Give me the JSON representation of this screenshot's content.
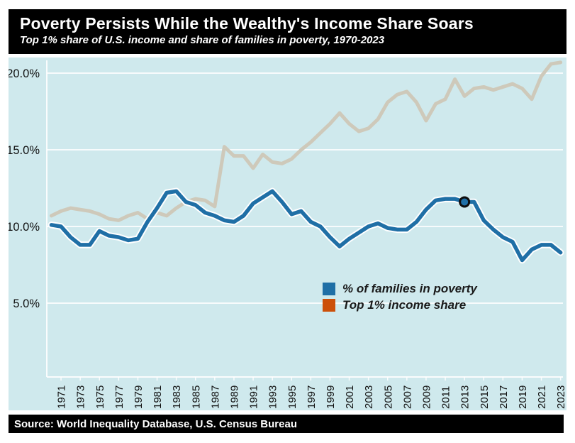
{
  "header": {
    "title": "Poverty Persists While the Wealthy's Income Share Soars",
    "subtitle": "Top 1% share of U.S. income and share of families in poverty, 1970-2023"
  },
  "footer": {
    "source": "Source: World Inequality Database, U.S. Census Bureau"
  },
  "colors": {
    "page_bg": "#ffffff",
    "bar_bg": "#000000",
    "bar_text": "#ffffff",
    "chart_bg": "#cfe9ed",
    "grid": "#ffffff",
    "axis_text": "#111111",
    "poverty_line": "#1f6fa6",
    "poverty_halo": "#ffffff",
    "top1_line": "#cec9ba",
    "legend_poverty": "#1f6fa6",
    "legend_top1": "#cc500a",
    "marker_fill": "#1f6fa6",
    "marker_stroke": "#0d0d0d"
  },
  "chart_data": {
    "type": "line",
    "title": "Poverty Persists While the Wealthy's Income Share Soars",
    "subtitle": "Top 1% share of U.S. income and share of families in poverty, 1970-2023",
    "xlabel": "",
    "ylabel": "",
    "ylim": [
      0,
      21
    ],
    "grid": "horizontal",
    "legend_position": "inside-lower-middle",
    "years": [
      1970,
      1971,
      1972,
      1973,
      1974,
      1975,
      1976,
      1977,
      1978,
      1979,
      1980,
      1981,
      1982,
      1983,
      1984,
      1985,
      1986,
      1987,
      1988,
      1989,
      1990,
      1991,
      1992,
      1993,
      1994,
      1995,
      1996,
      1997,
      1998,
      1999,
      2000,
      2001,
      2002,
      2003,
      2004,
      2005,
      2006,
      2007,
      2008,
      2009,
      2010,
      2011,
      2012,
      2013,
      2014,
      2015,
      2016,
      2017,
      2018,
      2019,
      2020,
      2021,
      2022,
      2023
    ],
    "series": [
      {
        "name": "% of families in poverty",
        "values": [
          10.1,
          10.0,
          9.3,
          8.8,
          8.8,
          9.7,
          9.4,
          9.3,
          9.1,
          9.2,
          10.3,
          11.2,
          12.2,
          12.3,
          11.6,
          11.4,
          10.9,
          10.7,
          10.4,
          10.3,
          10.7,
          11.5,
          11.9,
          12.3,
          11.6,
          10.8,
          11.0,
          10.3,
          10.0,
          9.3,
          8.7,
          9.2,
          9.6,
          10.0,
          10.2,
          9.9,
          9.8,
          9.8,
          10.3,
          11.1,
          11.7,
          11.8,
          11.8,
          11.6,
          11.6,
          10.4,
          9.8,
          9.3,
          9.0,
          7.8,
          8.5,
          8.8,
          8.8,
          8.3
        ]
      },
      {
        "name": "Top 1% income share",
        "values": [
          10.7,
          11.0,
          11.2,
          11.1,
          11.0,
          10.8,
          10.5,
          10.4,
          10.7,
          10.9,
          10.5,
          10.9,
          10.7,
          11.2,
          11.6,
          11.8,
          11.7,
          11.3,
          15.2,
          14.6,
          14.6,
          13.8,
          14.7,
          14.2,
          14.1,
          14.4,
          15.0,
          15.5,
          16.1,
          16.7,
          17.4,
          16.7,
          16.2,
          16.4,
          17.0,
          18.1,
          18.6,
          18.8,
          18.1,
          16.9,
          18.0,
          18.3,
          19.6,
          18.5,
          19.0,
          19.1,
          18.9,
          19.1,
          19.3,
          19.0,
          18.3,
          19.8,
          20.6,
          20.7
        ]
      }
    ],
    "y_ticks": [
      {
        "value": 20,
        "label": "20.0%"
      },
      {
        "value": 15,
        "label": "15.0%"
      },
      {
        "value": 10,
        "label": "10.0%"
      },
      {
        "value": 5,
        "label": "5.0%"
      }
    ],
    "x_tick_years": [
      1971,
      1973,
      1975,
      1977,
      1979,
      1981,
      1983,
      1985,
      1987,
      1989,
      1991,
      1993,
      1995,
      1997,
      1999,
      2001,
      2003,
      2005,
      2007,
      2009,
      2011,
      2013,
      2015,
      2017,
      2019,
      2021,
      2023
    ],
    "highlight_point": {
      "series": "% of families in poverty",
      "year": 2013,
      "value": 11.6
    },
    "legend": [
      {
        "label": "% of families in poverty",
        "color": "#1f6fa6"
      },
      {
        "label": "Top 1% income share",
        "color": "#cc500a"
      }
    ]
  }
}
